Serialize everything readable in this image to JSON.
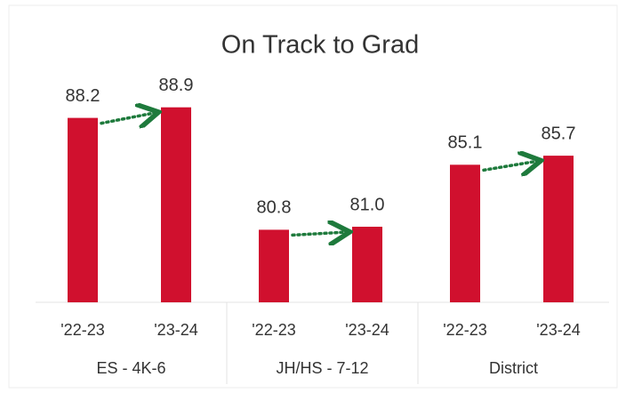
{
  "chart_data": {
    "type": "bar",
    "title": "On Track to Grad",
    "groups": [
      "ES - 4K-6",
      "JH/HS - 7-12",
      "District"
    ],
    "categories": [
      "'22-23",
      "'23-24",
      "'22-23",
      "'23-24",
      "'22-23",
      "'23-24"
    ],
    "values": [
      88.2,
      88.9,
      80.8,
      81.0,
      85.1,
      85.7
    ],
    "value_labels": [
      "88.2",
      "88.9",
      "80.8",
      "81.0",
      "85.1",
      "85.7"
    ],
    "color": "#d0102e",
    "arrow_color": "#1e7a3c",
    "ylim": [
      76,
      90
    ]
  }
}
